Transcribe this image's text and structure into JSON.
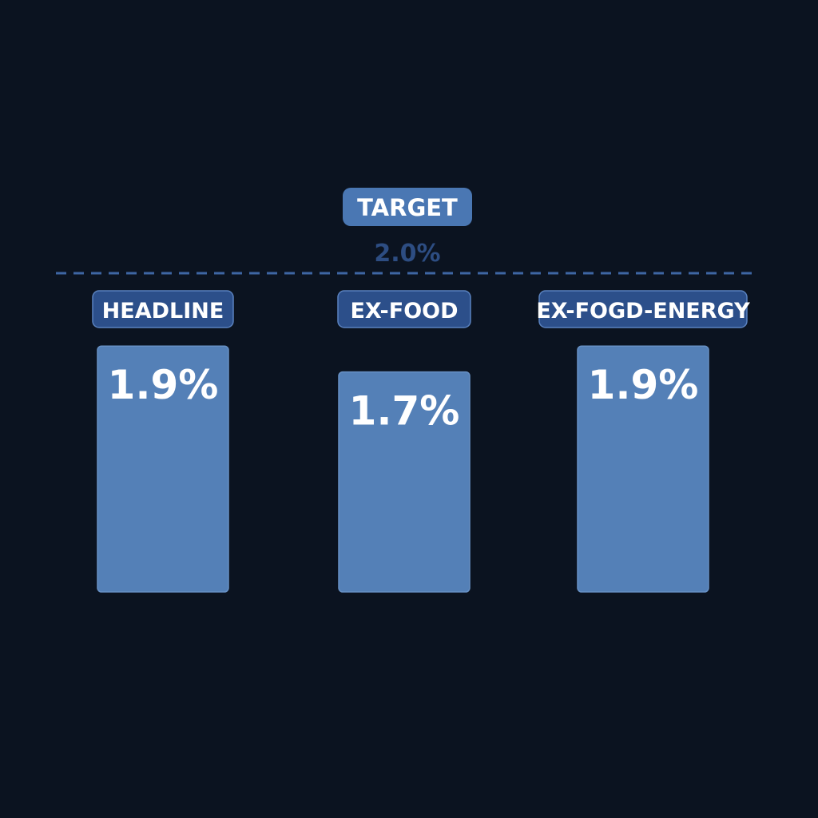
{
  "chart_data": {
    "type": "bar",
    "categories": [
      "HEADLINE",
      "EX-FOOD",
      "EX-FOGD-ENERGY"
    ],
    "values": [
      1.9,
      1.7,
      1.9
    ],
    "value_labels": [
      "1.9%",
      "1.7%",
      "1.9%"
    ],
    "target": {
      "label": "TARGET",
      "value": 2.0,
      "value_label": "2.0%"
    },
    "grid": false,
    "legend": "none"
  },
  "colors": {
    "background": "#0b1320",
    "bar": "#5480b7",
    "bar_edge": "#6790c4",
    "pill": "#2c4f8a",
    "pill_edge": "#5a82bf",
    "target_pill": "#4a77b3",
    "target_line": "#3e66a3",
    "target_value": "#2d4d82",
    "text": "#ffffff"
  }
}
